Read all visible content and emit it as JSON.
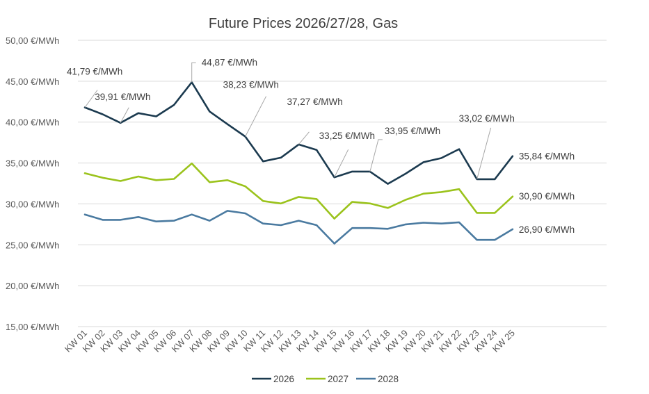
{
  "chart_data": {
    "type": "line",
    "title": "Future Prices 2026/27/28, Gas",
    "categories": [
      "KW 01",
      "KW 02",
      "KW 03",
      "KW 04",
      "KW 05",
      "KW 06",
      "KW 07",
      "KW 08",
      "KW 09",
      "KW 10",
      "KW 11",
      "KW 12",
      "KW 13",
      "KW 14",
      "KW 15",
      "KW 16",
      "KW 17",
      "KW 18",
      "KW 19",
      "KW 20",
      "KW 21",
      "KW 22",
      "KW 23",
      "KW 24",
      "KW 25"
    ],
    "y_ticks": [
      "15,00 €/MWh",
      "20,00 €/MWh",
      "25,00 €/MWh",
      "30,00 €/MWh",
      "35,00 €/MWh",
      "40,00 €/MWh",
      "45,00 €/MWh",
      "50,00 €/MWh"
    ],
    "ylim": [
      15,
      50
    ],
    "grid": true,
    "legend_position": "bottom",
    "series": [
      {
        "name": "2026",
        "color": "#1b3a4f",
        "values": [
          41.79,
          40.95,
          39.91,
          41.1,
          40.7,
          42.1,
          44.87,
          41.3,
          39.75,
          38.23,
          35.2,
          35.65,
          37.27,
          36.6,
          33.25,
          33.95,
          33.95,
          32.45,
          33.7,
          35.1,
          35.6,
          36.7,
          33.02,
          33.02,
          35.84
        ]
      },
      {
        "name": "2027",
        "color": "#9bc31c",
        "values": [
          33.75,
          33.2,
          32.8,
          33.35,
          32.9,
          33.05,
          34.95,
          32.65,
          32.9,
          32.15,
          30.35,
          30.05,
          30.85,
          30.6,
          28.2,
          30.25,
          30.05,
          29.5,
          30.5,
          31.25,
          31.45,
          31.8,
          28.9,
          28.9,
          30.9
        ]
      },
      {
        "name": "2028",
        "color": "#4a7aa0",
        "values": [
          28.7,
          28.05,
          28.05,
          28.4,
          27.85,
          27.95,
          28.7,
          27.95,
          29.15,
          28.85,
          27.6,
          27.4,
          27.95,
          27.4,
          25.15,
          27.05,
          27.05,
          26.95,
          27.5,
          27.7,
          27.6,
          27.75,
          25.6,
          25.6,
          26.9
        ]
      }
    ],
    "annotations": [
      {
        "text": "41,79 €/MWh",
        "series": 0,
        "index": 0
      },
      {
        "text": "39,91 €/MWh",
        "series": 0,
        "index": 2
      },
      {
        "text": "44,87 €/MWh",
        "series": 0,
        "index": 6
      },
      {
        "text": "38,23 €/MWh",
        "series": 0,
        "index": 9
      },
      {
        "text": "37,27 €/MWh",
        "series": 0,
        "index": 12
      },
      {
        "text": "33,25 €/MWh",
        "series": 0,
        "index": 14
      },
      {
        "text": "33,95 €/MWh",
        "series": 0,
        "index": 16
      },
      {
        "text": "33,02 €/MWh",
        "series": 0,
        "index": 22
      },
      {
        "text": "35,84 €/MWh",
        "series": 0,
        "index": 24
      },
      {
        "text": "30,90 €/MWh",
        "series": 1,
        "index": 24
      },
      {
        "text": "26,90 €/MWh",
        "series": 2,
        "index": 24
      }
    ]
  }
}
